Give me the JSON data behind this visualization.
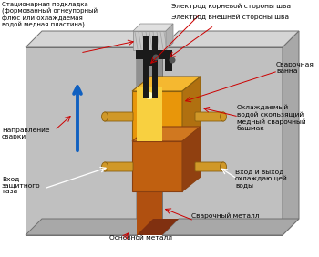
{
  "bg_color": "#ffffff",
  "plate_front_color": "#c0c0c0",
  "plate_top_color": "#d5d5d5",
  "plate_side_color": "#a8a8a8",
  "gap_color": "#909090",
  "shoe_front_color": "#e8960a",
  "shoe_top_color": "#f5b830",
  "shoe_side_color": "#b07010",
  "shoe2_front_color": "#c06010",
  "shoe2_top_color": "#d07820",
  "shoe2_side_color": "#904010",
  "pool_color": "#f8d040",
  "pool_white": "#ffffc0",
  "weld_front_color": "#b05010",
  "weld_side_color": "#803010",
  "backing_front_color": "#c8c8c8",
  "backing_top_color": "#e0e0e0",
  "backing_side_color": "#b0b0b0",
  "backing_stripe": "#a0a0a0",
  "electrode_dark": "#1a1a1a",
  "blue_arrow": "#1060c0",
  "red_arrow": "#cc0000",
  "white_arrow": "#ffffff",
  "tube_color": "#d09828",
  "tube_dark": "#8a6010",
  "label_color": "#000000",
  "labels": {
    "top_left": "Стационарная подкладка\n(формованный огнеупорный\nфлюс или охлаждаемая\nводой медная пластина)",
    "electrode_root": "Электрод корневой стороны шва",
    "electrode_face": "Электрод внешней стороны шва",
    "weld_bath": "Сварочная\nванна",
    "direction": "Направление\nсварки",
    "shoe": "Охлаждаемый\nводой скользящий\nмедный сварочный\nбашмак",
    "gas_inlet": "Вход\nзащитного\nгаза",
    "water_inout": "Вход и выход\nохлаждающей\nводы",
    "weld_metal": "Сварочный металл",
    "base_metal": "Основной металл"
  }
}
